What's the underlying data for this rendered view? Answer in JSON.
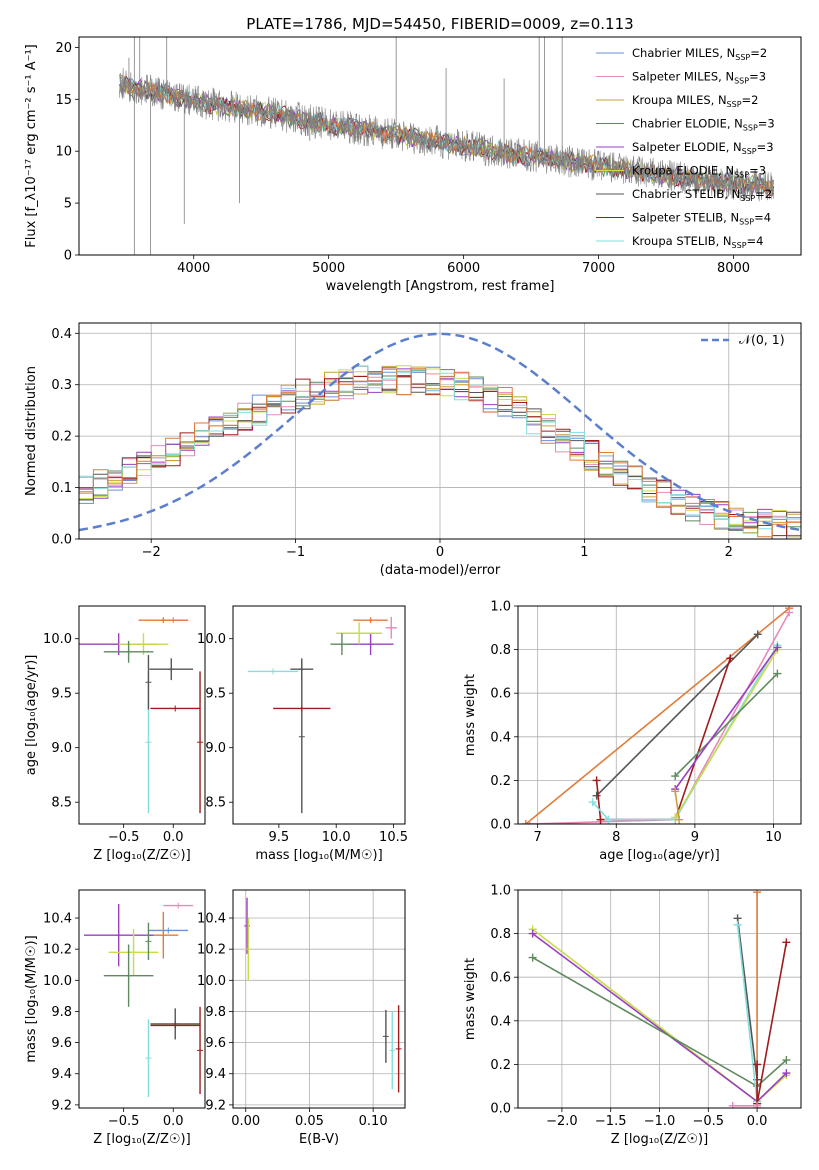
{
  "page": {
    "background": "#ffffff"
  },
  "colors": {
    "Chabrier MILES": "#6a8fd6",
    "Salpeter MILES": "#e88ab8",
    "Kroupa MILES": "#c7a03a",
    "Chabrier ELODIE": "#5f8a5f",
    "Salpeter ELODIE": "#9a3fc1",
    "Kroupa ELODIE": "#c8dc4a",
    "Chabrier STELIB": "#555555",
    "Salpeter STELIB": "#a01c1c",
    "Kroupa STELIB": "#86dede",
    "orange": "#e07b39",
    "data": "#808080",
    "normal": "#5b7fce",
    "grid": "#b0b0b0"
  },
  "chart_data": [
    {
      "id": "spectrum",
      "type": "line",
      "title": "PLATE=1786, MJD=54450, FIBERID=0009, z=0.113",
      "xlabel": "wavelength [Angstrom, rest frame]",
      "ylabel": "Flux [f_λ10⁻¹⁷ erg cm⁻² s⁻¹ A⁻¹]",
      "xlim": [
        3150,
        8500
      ],
      "ylim": [
        0,
        21
      ],
      "xticks": [
        4000,
        5000,
        6000,
        7000,
        8000
      ],
      "yticks": [
        0,
        5,
        10,
        15,
        20
      ],
      "grid": false,
      "legend_position": "top-right",
      "legend": [
        {
          "name": "Chabrier MILES",
          "nssp": "2"
        },
        {
          "name": "Salpeter MILES",
          "nssp": "3"
        },
        {
          "name": "Kroupa MILES",
          "nssp": "2"
        },
        {
          "name": "Chabrier ELODIE",
          "nssp": "3"
        },
        {
          "name": "Salpeter ELODIE",
          "nssp": "3"
        },
        {
          "name": "Kroupa ELODIE",
          "nssp": "3"
        },
        {
          "name": "Chabrier STELIB",
          "nssp": "2"
        },
        {
          "name": "Salpeter STELIB",
          "nssp": "4"
        },
        {
          "name": "Kroupa STELIB",
          "nssp": "4"
        }
      ],
      "continuum": {
        "x": [
          3450,
          3700,
          4000,
          4500,
          5000,
          5500,
          6000,
          6500,
          7000,
          7500,
          8000,
          8300
        ],
        "y": [
          16.5,
          15.8,
          14.8,
          13.8,
          12.6,
          11.6,
          10.5,
          9.5,
          8.6,
          7.6,
          6.9,
          6.6
        ]
      },
      "spikes": [
        {
          "x": 3520,
          "y": 19
        },
        {
          "x": 3560,
          "y": 21
        },
        {
          "x": 3600,
          "y": 21
        },
        {
          "x": 3680,
          "y": 0
        },
        {
          "x": 3560,
          "y": 0
        },
        {
          "x": 3800,
          "y": 21
        },
        {
          "x": 3930,
          "y": 3
        },
        {
          "x": 4340,
          "y": 5
        },
        {
          "x": 4860,
          "y": 11
        },
        {
          "x": 5500,
          "y": 21
        },
        {
          "x": 5870,
          "y": 18
        },
        {
          "x": 6300,
          "y": 17
        },
        {
          "x": 6560,
          "y": 21
        },
        {
          "x": 6600,
          "y": 21
        },
        {
          "x": 6730,
          "y": 21
        }
      ]
    },
    {
      "id": "residual-hist",
      "type": "line",
      "xlabel": "(data-model)/error",
      "ylabel": "Normed distribution",
      "xlim": [
        -2.5,
        2.5
      ],
      "ylim": [
        0,
        0.42
      ],
      "xticks": [
        -2,
        -1,
        0,
        1,
        2
      ],
      "yticks": [
        0.0,
        0.1,
        0.2,
        0.3,
        0.4
      ],
      "grid": true,
      "legend_position": "top-right",
      "legend": [
        {
          "name": "𝒩(0, 1)"
        }
      ],
      "histogram_profile": {
        "x": [
          -2.5,
          -2.0,
          -1.5,
          -1.0,
          -0.5,
          0.0,
          0.5,
          1.0,
          1.5,
          2.0,
          2.5
        ],
        "y": [
          0.09,
          0.15,
          0.22,
          0.28,
          0.31,
          0.31,
          0.26,
          0.17,
          0.09,
          0.04,
          0.02
        ]
      },
      "gaussian": {
        "mean": 0,
        "sigma": 1
      }
    },
    {
      "id": "age-vs-Z",
      "type": "scatter",
      "xlabel": "Z [log₁₀(Z/Z☉)]",
      "ylabel": "age  [log₁₀(age/yr)]",
      "xlim": [
        -0.95,
        0.32
      ],
      "ylim": [
        8.3,
        10.3
      ],
      "xticks": [
        -0.5,
        0.0
      ],
      "yticks": [
        8.5,
        9.0,
        9.5,
        10.0
      ],
      "errorbars": [
        {
          "series": "Salpeter MILES",
          "x": 0.0,
          "xerr": 0.15,
          "y": 10.17,
          "yerr": 0.02
        },
        {
          "series": "orange",
          "x": -0.1,
          "xerr": 0.25,
          "y": 10.17,
          "yerr": 0.02
        },
        {
          "series": "Salpeter ELODIE",
          "x": -0.55,
          "xerr": 0.4,
          "y": 9.95,
          "yerr": 0.1
        },
        {
          "series": "Kroupa ELODIE",
          "x": -0.3,
          "xerr": 0.25,
          "y": 9.95,
          "yerr": 0.1
        },
        {
          "series": "Chabrier ELODIE",
          "x": -0.45,
          "xerr": 0.25,
          "y": 9.88,
          "yerr": 0.1
        },
        {
          "series": "Chabrier STELIB",
          "x": -0.02,
          "xerr": 0.22,
          "y": 9.72,
          "yerr": 0.1
        },
        {
          "series": "Kroupa STELIB",
          "x": -0.25,
          "xerr": 0.0,
          "y": 9.05,
          "yerr": 0.65
        },
        {
          "series": "Chabrier STELIB",
          "x": -0.25,
          "xerr": 0.0,
          "y": 9.6,
          "yerr": 0.25
        },
        {
          "series": "Salpeter STELIB",
          "x": 0.27,
          "xerr": 0.0,
          "y": 9.05,
          "yerr": 0.65
        },
        {
          "series": "Salpeter STELIB",
          "x": 0.02,
          "xerr": 0.25,
          "y": 9.36,
          "yerr": 0.0
        }
      ]
    },
    {
      "id": "age-vs-mass",
      "type": "scatter",
      "xlabel": "mass [log₁₀(M/M☉)]",
      "ylabel": "",
      "xlim": [
        9.1,
        10.6
      ],
      "ylim": [
        8.3,
        10.3
      ],
      "xticks": [
        9.5,
        10.0,
        10.5
      ],
      "yticks": [
        8.5,
        9.0,
        9.5,
        10.0
      ],
      "errorbars": [
        {
          "series": "Salpeter MILES",
          "x": 10.48,
          "xerr": 0.05,
          "y": 10.1,
          "yerr": 0.1
        },
        {
          "series": "orange",
          "x": 10.3,
          "xerr": 0.15,
          "y": 10.17,
          "yerr": 0.02
        },
        {
          "series": "Salpeter ELODIE",
          "x": 10.3,
          "xerr": 0.2,
          "y": 9.95,
          "yerr": 0.1
        },
        {
          "series": "Kroupa ELODIE",
          "x": 10.2,
          "xerr": 0.2,
          "y": 10.05,
          "yerr": 0.1
        },
        {
          "series": "Chabrier ELODIE",
          "x": 10.05,
          "xerr": 0.1,
          "y": 9.95,
          "yerr": 0.1
        },
        {
          "series": "Kroupa STELIB",
          "x": 9.45,
          "xerr": 0.22,
          "y": 9.7,
          "yerr": 0.0
        },
        {
          "series": "Chabrier STELIB",
          "x": 9.7,
          "xerr": 0.0,
          "y": 9.1,
          "yerr": 0.7
        },
        {
          "series": "Chabrier STELIB",
          "x": 9.7,
          "xerr": 0.1,
          "y": 9.72,
          "yerr": 0.1
        },
        {
          "series": "Salpeter STELIB",
          "x": 9.7,
          "xerr": 0.25,
          "y": 9.36,
          "yerr": 0.0
        }
      ]
    },
    {
      "id": "weight-vs-age",
      "type": "line",
      "xlabel": "age  [log₁₀(age/yr)]",
      "ylabel": "mass weight",
      "xlim": [
        6.75,
        10.35
      ],
      "ylim": [
        0,
        1
      ],
      "xticks": [
        7,
        8,
        9,
        10
      ],
      "yticks": [
        0.0,
        0.2,
        0.4,
        0.6,
        0.8,
        1.0
      ],
      "grid": true,
      "series": [
        {
          "name": "orange",
          "x": [
            6.85,
            10.2
          ],
          "y": [
            0.0,
            0.99
          ]
        },
        {
          "name": "Salpeter MILES",
          "x": [
            6.9,
            7.8,
            8.75,
            10.2
          ],
          "y": [
            0.0,
            0.01,
            0.02,
            0.97
          ]
        },
        {
          "name": "Chabrier STELIB",
          "x": [
            7.75,
            9.8
          ],
          "y": [
            0.13,
            0.87
          ]
        },
        {
          "name": "Salpeter STELIB",
          "x": [
            7.75,
            7.8,
            8.75,
            9.45
          ],
          "y": [
            0.2,
            0.02,
            0.02,
            0.76
          ]
        },
        {
          "name": "Kroupa STELIB",
          "x": [
            7.7,
            7.9,
            8.75,
            10.05
          ],
          "y": [
            0.1,
            0.02,
            0.02,
            0.82
          ]
        },
        {
          "name": "Kroupa ELODIE",
          "x": [
            8.75,
            10.05
          ],
          "y": [
            0.03,
            0.8
          ]
        },
        {
          "name": "Chabrier ELODIE",
          "x": [
            8.75,
            10.05
          ],
          "y": [
            0.22,
            0.69
          ]
        },
        {
          "name": "Salpeter ELODIE",
          "x": [
            8.75,
            10.05
          ],
          "y": [
            0.16,
            0.81
          ]
        },
        {
          "name": "Kroupa MILES",
          "x": [
            8.75,
            8.8
          ],
          "y": [
            0.15,
            0.02
          ]
        }
      ]
    },
    {
      "id": "mass-vs-Z",
      "type": "scatter",
      "xlabel": "Z [log₁₀(Z/Z☉)]",
      "ylabel": "mass [log₁₀(M/M☉)]",
      "xlim": [
        -0.95,
        0.32
      ],
      "ylim": [
        9.18,
        10.58
      ],
      "xticks": [
        -0.5,
        0.0
      ],
      "yticks": [
        9.2,
        9.4,
        9.6,
        9.8,
        10.0,
        10.2,
        10.4
      ],
      "errorbars": [
        {
          "series": "Salpeter MILES",
          "x": 0.05,
          "xerr": 0.15,
          "y": 10.48,
          "yerr": 0.0
        },
        {
          "series": "Chabrier MILES",
          "x": -0.05,
          "xerr": 0.2,
          "y": 10.32,
          "yerr": 0.0
        },
        {
          "series": "orange",
          "x": -0.1,
          "xerr": 0.15,
          "y": 10.29,
          "yerr": 0.15
        },
        {
          "series": "Salpeter ELODIE",
          "x": -0.55,
          "xerr": 0.35,
          "y": 10.29,
          "yerr": 0.2
        },
        {
          "series": "Kroupa ELODIE",
          "x": -0.4,
          "xerr": 0.25,
          "y": 10.18,
          "yerr": 0.15
        },
        {
          "series": "Chabrier ELODIE",
          "x": -0.45,
          "xerr": 0.25,
          "y": 10.03,
          "yerr": 0.2
        },
        {
          "series": "Chabrier ELODIE",
          "x": -0.25,
          "xerr": 0.0,
          "y": 10.25,
          "yerr": 0.12
        },
        {
          "series": "Chabrier STELIB",
          "x": 0.02,
          "xerr": 0.25,
          "y": 9.72,
          "yerr": 0.1
        },
        {
          "series": "Kroupa STELIB",
          "x": -0.25,
          "xerr": 0.0,
          "y": 9.5,
          "yerr": 0.25
        },
        {
          "series": "Salpeter STELIB",
          "x": 0.27,
          "xerr": 0.0,
          "y": 9.55,
          "yerr": 0.28
        },
        {
          "series": "Salpeter STELIB",
          "x": 0.02,
          "xerr": 0.25,
          "y": 9.71,
          "yerr": 0.0
        }
      ]
    },
    {
      "id": "mass-vs-EBV",
      "type": "scatter",
      "xlabel": "E(B-V)",
      "ylabel": "",
      "xlim": [
        -0.01,
        0.125
      ],
      "ylim": [
        9.18,
        10.58
      ],
      "xticks": [
        0.0,
        0.05,
        0.1
      ],
      "yticks": [
        9.2,
        9.4,
        9.6,
        9.8,
        10.0,
        10.2,
        10.4
      ],
      "grid": true,
      "errorbars": [
        {
          "series": "Salpeter ELODIE",
          "x": 0.001,
          "xerr": 0.0,
          "y": 10.35,
          "yerr": 0.18
        },
        {
          "series": "Kroupa ELODIE",
          "x": 0.002,
          "xerr": 0.0,
          "y": 10.2,
          "yerr": 0.2
        },
        {
          "series": "Chabrier STELIB",
          "x": 0.11,
          "xerr": 0.0,
          "y": 9.64,
          "yerr": 0.17
        },
        {
          "series": "Kroupa STELIB",
          "x": 0.115,
          "xerr": 0.0,
          "y": 9.55,
          "yerr": 0.25
        },
        {
          "series": "Salpeter STELIB",
          "x": 0.12,
          "xerr": 0.0,
          "y": 9.56,
          "yerr": 0.28
        }
      ]
    },
    {
      "id": "weight-vs-Z",
      "type": "line",
      "xlabel": "Z [log₁₀(Z/Z☉)]",
      "ylabel": "mass weight",
      "xlim": [
        -2.45,
        0.45
      ],
      "ylim": [
        0,
        1
      ],
      "xticks": [
        -2.0,
        -1.5,
        -1.0,
        -0.5,
        0.0
      ],
      "yticks": [
        0.0,
        0.2,
        0.4,
        0.6,
        0.8,
        1.0
      ],
      "grid": true,
      "series": [
        {
          "name": "Kroupa ELODIE",
          "x": [
            -2.3,
            0.0,
            0.3
          ],
          "y": [
            0.82,
            0.03,
            0.15
          ]
        },
        {
          "name": "Salpeter ELODIE",
          "x": [
            -2.3,
            0.0,
            0.3
          ],
          "y": [
            0.8,
            0.03,
            0.16
          ]
        },
        {
          "name": "Chabrier ELODIE",
          "x": [
            -2.3,
            0.0,
            0.3
          ],
          "y": [
            0.69,
            0.1,
            0.22
          ]
        },
        {
          "name": "Chabrier STELIB",
          "x": [
            -0.2,
            0.0
          ],
          "y": [
            0.87,
            0.13
          ]
        },
        {
          "name": "Kroupa STELIB",
          "x": [
            -0.2,
            0.0
          ],
          "y": [
            0.84,
            0.03
          ]
        },
        {
          "name": "orange",
          "x": [
            0.0,
            0.0
          ],
          "y": [
            0.0,
            0.99
          ]
        },
        {
          "name": "Salpeter STELIB",
          "x": [
            0.0,
            0.0,
            0.3
          ],
          "y": [
            0.2,
            0.02,
            0.76
          ]
        },
        {
          "name": "Salpeter MILES",
          "x": [
            -0.25,
            0.0
          ],
          "y": [
            0.01,
            0.01
          ]
        }
      ]
    }
  ]
}
